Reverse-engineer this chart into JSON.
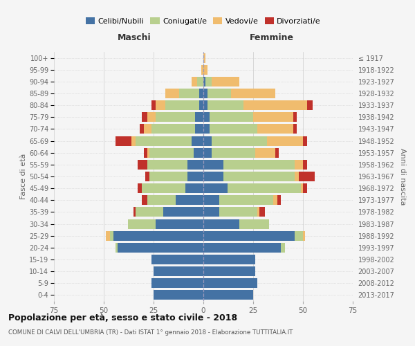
{
  "age_groups": [
    "0-4",
    "5-9",
    "10-14",
    "15-19",
    "20-24",
    "25-29",
    "30-34",
    "35-39",
    "40-44",
    "45-49",
    "50-54",
    "55-59",
    "60-64",
    "65-69",
    "70-74",
    "75-79",
    "80-84",
    "85-89",
    "90-94",
    "95-99",
    "100+"
  ],
  "birth_years": [
    "2013-2017",
    "2008-2012",
    "2003-2007",
    "1998-2002",
    "1993-1997",
    "1988-1992",
    "1983-1987",
    "1978-1982",
    "1973-1977",
    "1968-1972",
    "1963-1967",
    "1958-1962",
    "1953-1957",
    "1948-1952",
    "1943-1947",
    "1938-1942",
    "1933-1937",
    "1928-1932",
    "1923-1927",
    "1918-1922",
    "≤ 1917"
  ],
  "maschi": {
    "celibi": [
      25,
      26,
      25,
      26,
      43,
      45,
      24,
      20,
      14,
      9,
      8,
      8,
      5,
      6,
      4,
      4,
      2,
      2,
      0,
      0,
      0
    ],
    "coniugati": [
      0,
      0,
      0,
      0,
      1,
      2,
      14,
      14,
      14,
      22,
      19,
      20,
      22,
      28,
      22,
      20,
      17,
      10,
      3,
      0,
      0
    ],
    "vedovi": [
      0,
      0,
      0,
      0,
      0,
      2,
      0,
      0,
      0,
      0,
      0,
      0,
      1,
      2,
      4,
      4,
      5,
      7,
      3,
      1,
      0
    ],
    "divorziati": [
      0,
      0,
      0,
      0,
      0,
      0,
      0,
      1,
      3,
      2,
      2,
      5,
      2,
      8,
      2,
      3,
      2,
      0,
      0,
      0,
      0
    ]
  },
  "femmine": {
    "nubili": [
      25,
      27,
      26,
      26,
      39,
      46,
      18,
      8,
      8,
      12,
      10,
      10,
      4,
      4,
      3,
      3,
      2,
      2,
      1,
      0,
      0
    ],
    "coniugate": [
      0,
      0,
      0,
      0,
      2,
      4,
      15,
      19,
      27,
      37,
      36,
      36,
      22,
      28,
      24,
      22,
      18,
      12,
      3,
      0,
      0
    ],
    "vedove": [
      0,
      0,
      0,
      0,
      0,
      1,
      0,
      1,
      2,
      1,
      2,
      4,
      10,
      18,
      18,
      20,
      32,
      22,
      14,
      2,
      1
    ],
    "divorziate": [
      0,
      0,
      0,
      0,
      0,
      0,
      0,
      3,
      2,
      2,
      8,
      2,
      2,
      2,
      2,
      2,
      3,
      0,
      0,
      0,
      0
    ]
  },
  "colors": {
    "celibi": "#4472a4",
    "coniugati": "#b8cf8e",
    "vedovi": "#f0bc6e",
    "divorziati": "#c0312b"
  },
  "legend_labels": [
    "Celibi/Nubili",
    "Coniugati/e",
    "Vedovi/e",
    "Divorziati/e"
  ],
  "title": "Popolazione per età, sesso e stato civile - 2018",
  "subtitle": "COMUNE DI CALVI DELL'UMBRIA (TR) - Dati ISTAT 1° gennaio 2018 - Elaborazione TUTTITALIA.IT",
  "xlabel_left": "Maschi",
  "xlabel_right": "Femmine",
  "ylabel_left": "Fasce di età",
  "ylabel_right": "Anni di nascita",
  "xlim": 75,
  "bg": "#f5f5f5"
}
